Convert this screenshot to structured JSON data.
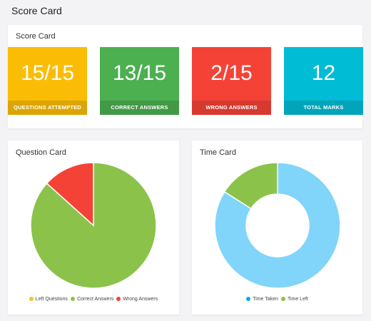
{
  "page": {
    "title": "Score Card"
  },
  "score_card": {
    "title": "Score Card",
    "tiles": [
      {
        "value": "15/15",
        "label": "QUESTIONS ATTEMPTED",
        "color": "#fbbc05"
      },
      {
        "value": "13/15",
        "label": "CORRECT ANSWERS",
        "color": "#4caf50"
      },
      {
        "value": "2/15",
        "label": "WRONG ANSWERS",
        "color": "#f44336"
      },
      {
        "value": "12",
        "label": "TOTAL MARKS",
        "color": "#00bcd4"
      }
    ]
  },
  "question_card": {
    "title": "Question Card",
    "legend": [
      {
        "label": "Left Questions",
        "color": "#fbc02d"
      },
      {
        "label": "Correct Answers",
        "color": "#8bc34a"
      },
      {
        "label": "Wrong Answers",
        "color": "#f44336"
      }
    ]
  },
  "time_card": {
    "title": "Time Card",
    "legend": [
      {
        "label": "Time Taken",
        "color": "#03a9f4"
      },
      {
        "label": "Time Left",
        "color": "#8bc34a"
      }
    ]
  },
  "chart_data": [
    {
      "type": "pie",
      "categories": [
        "Left Questions",
        "Correct Answers",
        "Wrong Answers"
      ],
      "values": [
        0,
        13,
        2
      ],
      "colors": [
        "#fbc02d",
        "#8bc34a",
        "#f44336"
      ],
      "legend": "bottom"
    },
    {
      "type": "pie",
      "donut": true,
      "categories": [
        "Time Taken",
        "Time Left"
      ],
      "values": [
        84,
        16
      ],
      "colors": [
        "#81d4fa",
        "#8bc34a"
      ],
      "legend": "bottom"
    }
  ]
}
